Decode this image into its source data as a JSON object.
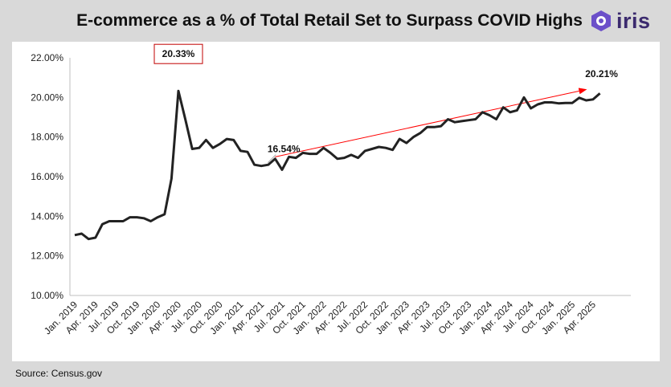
{
  "header": {
    "title": "E-commerce as a % of Total Retail Set to Surpass COVID Highs",
    "logo_text": "iris",
    "logo_color": "#6b4fc9"
  },
  "footer": {
    "source": "Source: Census.gov"
  },
  "chart_data": {
    "type": "line",
    "title": "E-commerce as a % of Total Retail Set to Surpass COVID Highs",
    "ylim": [
      10,
      22
    ],
    "yticks": [
      "10.00%",
      "12.00%",
      "14.00%",
      "16.00%",
      "18.00%",
      "20.00%",
      "22.00%"
    ],
    "grid": false,
    "legend": "none",
    "x_tick_labels": [
      "Jan. 2019",
      "Apr. 2019",
      "Jul. 2019",
      "Oct. 2019",
      "Jan. 2020",
      "Apr. 2020",
      "Jul. 2020",
      "Oct. 2020",
      "Jan. 2021",
      "Apr. 2021",
      "Jul. 2021",
      "Oct. 2021",
      "Jan. 2022",
      "Apr. 2022",
      "Jul. 2022",
      "Oct. 2022",
      "Jan. 2023",
      "Apr. 2023",
      "Jul. 2023",
      "Oct. 2023",
      "Jan. 2024",
      "Apr. 2024",
      "Jul. 2024",
      "Oct. 2024",
      "Jan. 2025",
      "Apr. 2025"
    ],
    "x_start": "Jan. 2019",
    "x_step": "month",
    "series": [
      {
        "color": "#222222",
        "values": [
          13.05,
          13.12,
          12.85,
          12.92,
          13.6,
          13.75,
          13.75,
          13.75,
          13.95,
          13.95,
          13.9,
          13.75,
          13.95,
          14.1,
          15.9,
          20.33,
          18.9,
          17.4,
          17.45,
          17.85,
          17.45,
          17.65,
          17.9,
          17.85,
          17.3,
          17.25,
          16.6,
          16.54,
          16.6,
          16.9,
          16.35,
          17.0,
          16.95,
          17.2,
          17.15,
          17.15,
          17.45,
          17.2,
          16.9,
          16.95,
          17.1,
          16.95,
          17.3,
          17.4,
          17.5,
          17.45,
          17.35,
          17.9,
          17.7,
          18.0,
          18.2,
          18.5,
          18.5,
          18.55,
          18.9,
          18.75,
          18.8,
          18.85,
          18.9,
          19.25,
          19.1,
          18.9,
          19.5,
          19.25,
          19.35,
          20.0,
          19.45,
          19.65,
          19.75,
          19.75,
          19.7,
          19.72,
          19.72,
          19.98,
          19.85,
          19.9,
          20.21
        ]
      }
    ],
    "annotations": [
      {
        "label": "20.33%",
        "at": "Apr. 2020",
        "value": 20.33,
        "boxed": true,
        "box_color": "#c00000"
      },
      {
        "label": "16.54%",
        "at": "Apr. 2021",
        "value": 16.54
      },
      {
        "label": "20.21%",
        "at": "May 2025",
        "value": 20.21
      }
    ],
    "trend_arrow": {
      "from": "Jun. 2021",
      "from_value": 17.0,
      "to": "Mar. 2025",
      "to_value": 20.4,
      "color": "#ff0000"
    }
  }
}
